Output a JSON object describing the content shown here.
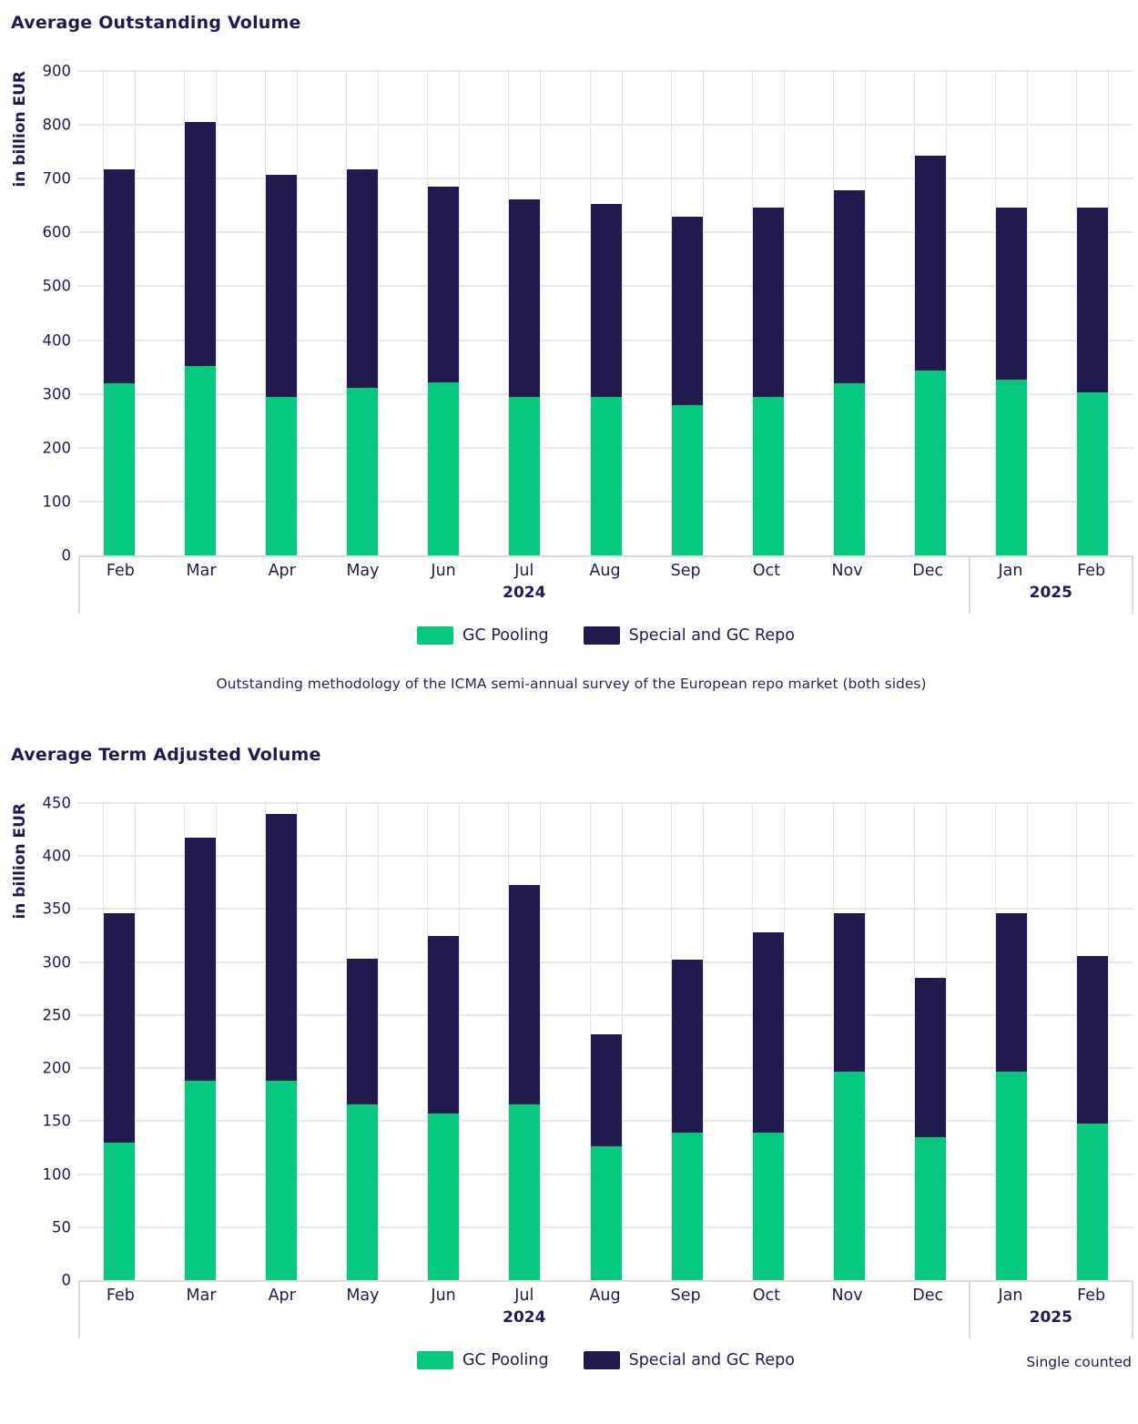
{
  "colors": {
    "gc_pooling_green": "#06c97f",
    "special_repo_navy": "#211a4f",
    "text_navy": "#211a52",
    "gridline_gray": "#e7e7ec",
    "axis_band_gray": "#dadade",
    "background": "#ffffff"
  },
  "chart_data": [
    {
      "type": "bar",
      "stacked": true,
      "title": "Average Outstanding Volume",
      "ylabel": "in billion EUR",
      "ylim": [
        0,
        900
      ],
      "ytick_step": 100,
      "grid": true,
      "legend_position": "bottom",
      "categories": [
        "Feb",
        "Mar",
        "Apr",
        "May",
        "Jun",
        "Jul",
        "Aug",
        "Sep",
        "Oct",
        "Nov",
        "Dec",
        "Jan",
        "Feb"
      ],
      "year_groups": [
        {
          "label": "2024",
          "span": 11
        },
        {
          "label": "2025",
          "span": 2
        }
      ],
      "series": [
        {
          "name": "GC Pooling",
          "color": "#06c97f",
          "values": [
            320,
            352,
            295,
            311,
            321,
            295,
            294,
            279,
            294,
            319,
            343,
            327,
            303
          ]
        },
        {
          "name": "Special and GC Repo",
          "color": "#211a4f",
          "values": [
            397,
            453,
            413,
            406,
            364,
            367,
            359,
            351,
            352,
            359,
            399,
            320,
            344
          ]
        }
      ],
      "totals": [
        717,
        805,
        708,
        717,
        685,
        662,
        653,
        630,
        646,
        678,
        742,
        647,
        647
      ],
      "footnote": "Outstanding methodology of the ICMA semi-annual survey of the European repo market (both sides)"
    },
    {
      "type": "bar",
      "stacked": true,
      "title": "Average Term Adjusted Volume",
      "ylabel": "in billion EUR",
      "ylim": [
        0,
        450
      ],
      "ytick_step": 50,
      "grid": true,
      "legend_position": "bottom",
      "categories": [
        "Feb",
        "Mar",
        "Apr",
        "May",
        "Jun",
        "Jul",
        "Aug",
        "Sep",
        "Oct",
        "Nov",
        "Dec",
        "Jan",
        "Feb"
      ],
      "year_groups": [
        {
          "label": "2024",
          "span": 11
        },
        {
          "label": "2025",
          "span": 2
        }
      ],
      "series": [
        {
          "name": "GC Pooling",
          "color": "#06c97f",
          "values": [
            130,
            188,
            188,
            166,
            157,
            166,
            126,
            139,
            139,
            197,
            135,
            197,
            148
          ]
        },
        {
          "name": "Special and GC Repo",
          "color": "#211a4f",
          "values": [
            216,
            229,
            252,
            137,
            168,
            207,
            106,
            163,
            189,
            149,
            150,
            149,
            158
          ]
        }
      ],
      "totals": [
        346,
        417,
        440,
        303,
        325,
        373,
        232,
        302,
        328,
        346,
        285,
        346,
        306
      ],
      "note": "Single counted"
    }
  ]
}
